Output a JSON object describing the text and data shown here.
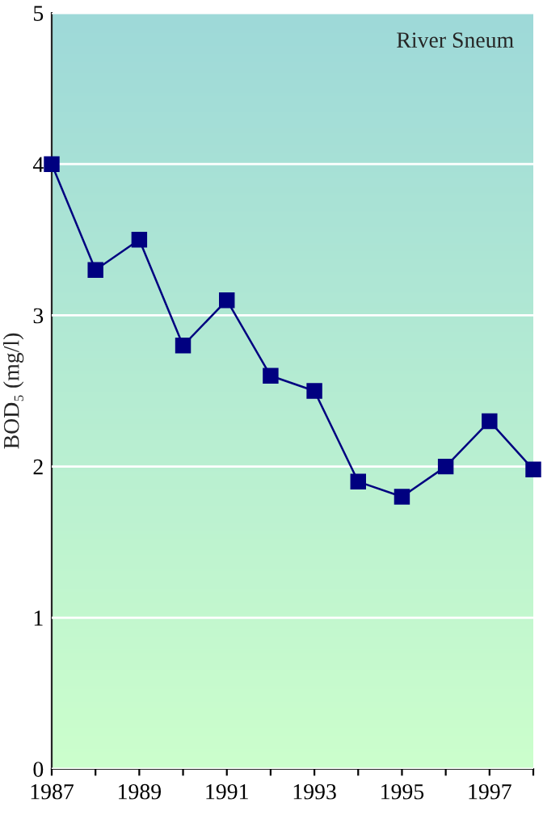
{
  "chart_data": {
    "type": "line",
    "ylabel": "BOD₅ (mg/l)",
    "annotations": [
      "River Sneum"
    ],
    "x": [
      1987,
      1988,
      1989,
      1990,
      1991,
      1992,
      1993,
      1994,
      1995,
      1996,
      1997,
      1998
    ],
    "series": [
      {
        "color": "#000080",
        "values": [
          4.0,
          3.3,
          3.5,
          2.8,
          3.1,
          2.6,
          2.5,
          1.9,
          1.8,
          2.0,
          2.3,
          1.98
        ]
      }
    ],
    "xlim": [
      1987,
      1998
    ],
    "xticks": [
      1987,
      {
        "value": 1988,
        "label": null
      },
      1989,
      {
        "value": 1990,
        "label": null
      },
      1991,
      {
        "value": 1992,
        "label": null
      },
      1993,
      {
        "value": 1994,
        "label": null
      },
      1995,
      {
        "value": 1996,
        "label": null
      },
      1997,
      {
        "value": 1998,
        "label": null
      }
    ],
    "ylim": [
      0,
      5
    ],
    "yticks": [
      0,
      1,
      2,
      3,
      4,
      5
    ],
    "grid": "y",
    "marker": "square",
    "line_style": "solid"
  }
}
